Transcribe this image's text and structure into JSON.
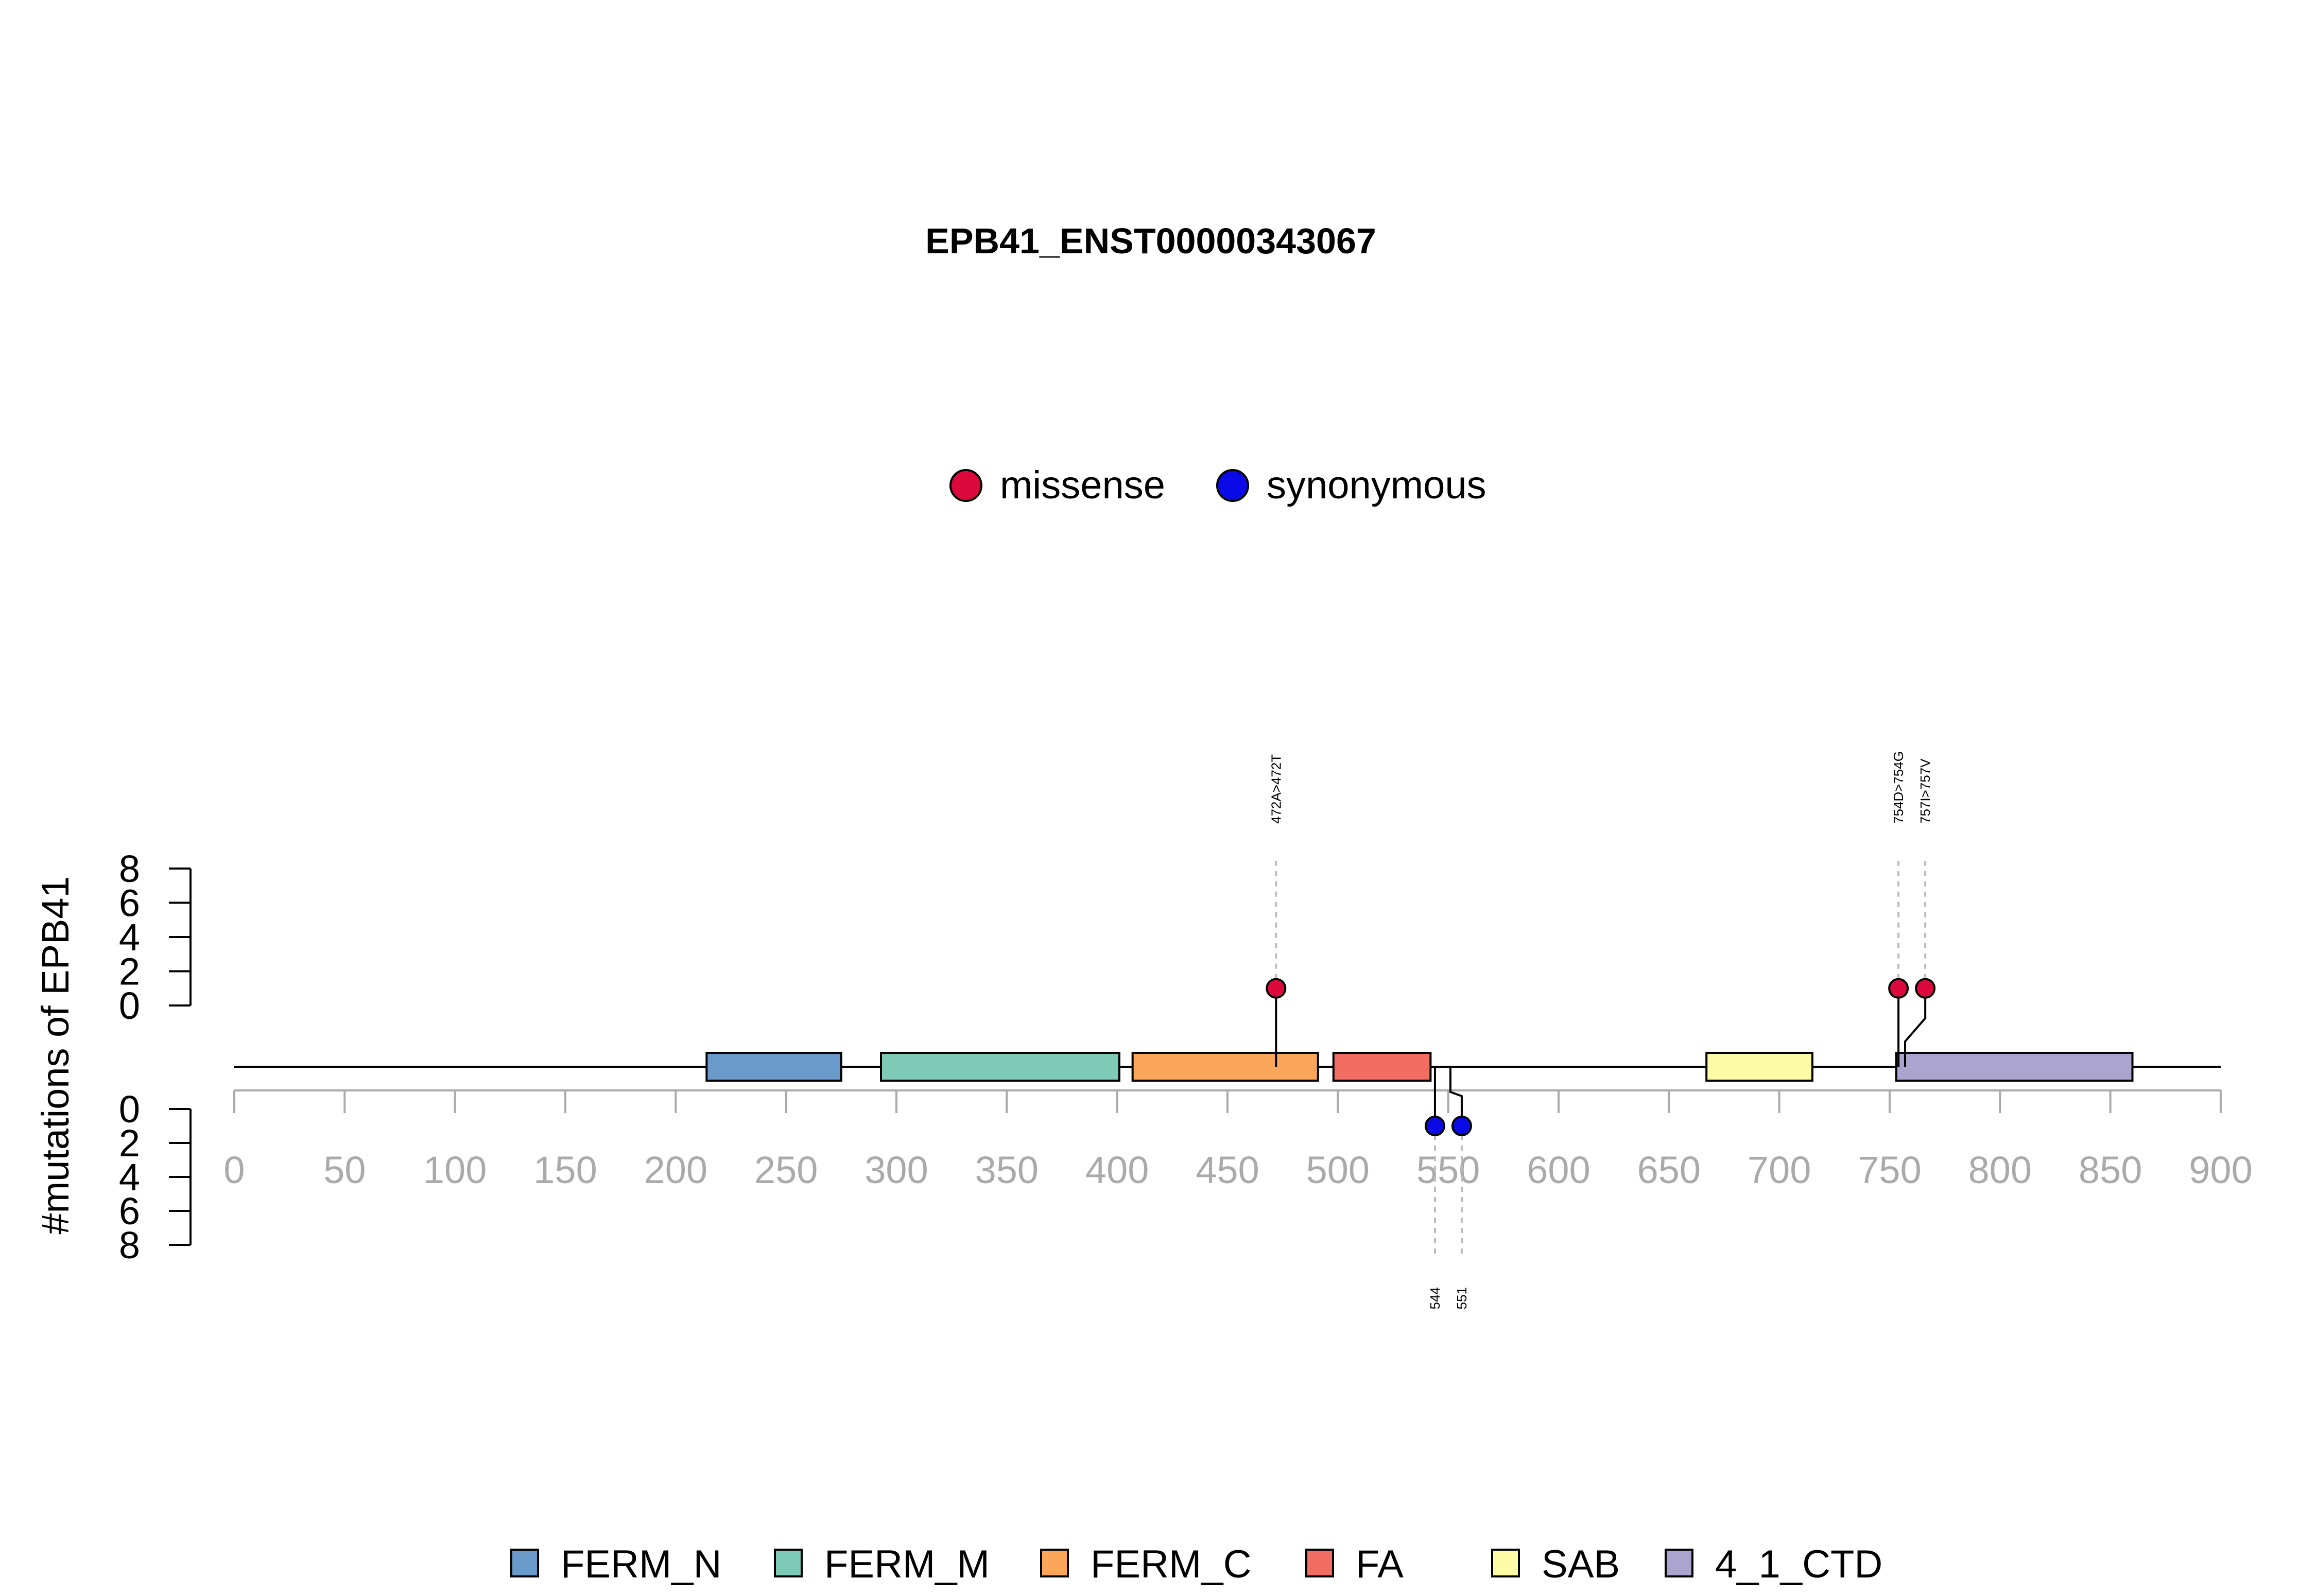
{
  "chart_data": {
    "type": "lollipop",
    "title": "EPB41_ENST00000343067",
    "ylabel": "#mutations of EPB41",
    "xlim": [
      0,
      900
    ],
    "x_ticks": [
      "0",
      "50",
      "100",
      "150",
      "200",
      "250",
      "300",
      "350",
      "400",
      "450",
      "500",
      "550",
      "600",
      "650",
      "700",
      "750",
      "800",
      "850",
      "900"
    ],
    "y_ticks_top": [
      "8",
      "6",
      "4",
      "2",
      "0"
    ],
    "y_ticks_bottom": [
      "0",
      "2",
      "4",
      "6",
      "8"
    ],
    "ylim": [
      0,
      8
    ],
    "protein_length": 900,
    "domains": [
      {
        "name": "FERM_N",
        "start": 214,
        "end": 275,
        "color": "#6a9ac9"
      },
      {
        "name": "FERM_M",
        "start": 293,
        "end": 401,
        "color": "#7ecab7"
      },
      {
        "name": "FERM_C",
        "start": 407,
        "end": 491,
        "color": "#fca65a"
      },
      {
        "name": "FA",
        "start": 498,
        "end": 542,
        "color": "#f26d62"
      },
      {
        "name": "SAB",
        "start": 667,
        "end": 715,
        "color": "#fdfba5"
      },
      {
        "name": "4_1_CTD",
        "start": 753,
        "end": 860,
        "color": "#aaa4ce"
      }
    ],
    "mutations_top": [
      {
        "position": 472,
        "count": 1,
        "type": "missense",
        "label": "472A>472T"
      },
      {
        "position": 754,
        "count": 1,
        "type": "missense",
        "label": "754D>754G"
      },
      {
        "position": 757,
        "count": 1,
        "type": "missense",
        "label": "757I>757V"
      }
    ],
    "mutations_bottom": [
      {
        "position": 544,
        "count": 1,
        "type": "synonymous",
        "label": "544"
      },
      {
        "position": 551,
        "count": 1,
        "type": "synonymous",
        "label": "551"
      }
    ],
    "legend_mutation_types": [
      {
        "name": "missense",
        "color": "#dc0a3c"
      },
      {
        "name": "synonymous",
        "color": "#0a0ae6"
      }
    ],
    "legend_mutation_placement": "top-center",
    "legend_domain_placement": "bottom-center"
  }
}
